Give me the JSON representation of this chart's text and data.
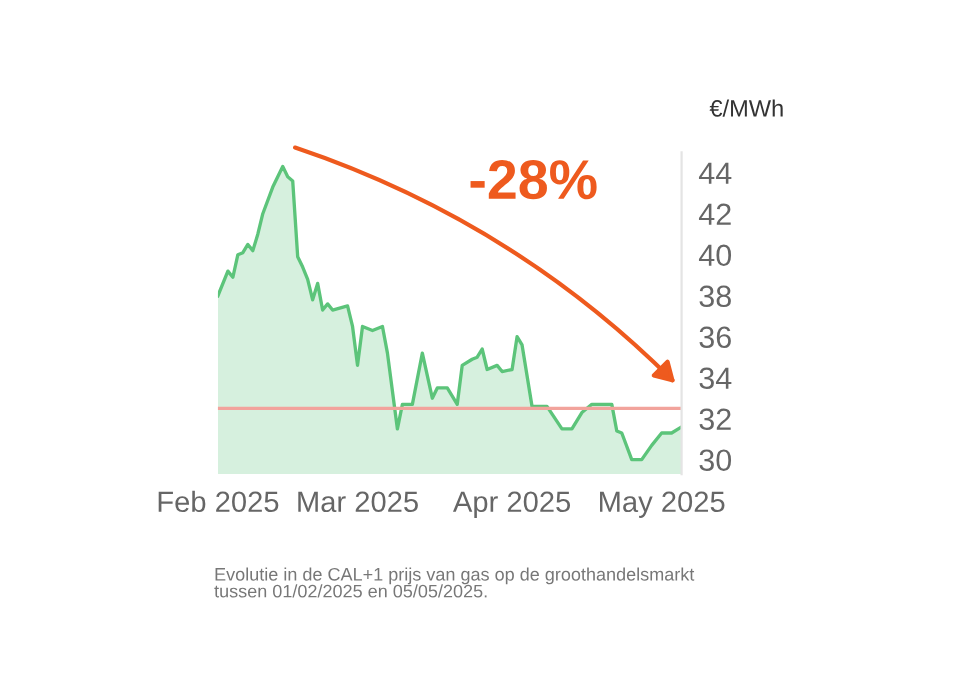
{
  "chart_data": {
    "type": "area",
    "x": [
      "2025-02-01",
      "2025-02-03",
      "2025-02-04",
      "2025-02-05",
      "2025-02-06",
      "2025-02-07",
      "2025-02-08",
      "2025-02-09",
      "2025-02-10",
      "2025-02-12",
      "2025-02-14",
      "2025-02-15",
      "2025-02-16",
      "2025-02-17",
      "2025-02-18",
      "2025-02-19",
      "2025-02-20",
      "2025-02-21",
      "2025-02-22",
      "2025-02-23",
      "2025-02-24",
      "2025-02-27",
      "2025-02-28",
      "2025-03-01",
      "2025-03-02",
      "2025-03-04",
      "2025-03-06",
      "2025-03-07",
      "2025-03-09",
      "2025-03-10",
      "2025-03-12",
      "2025-03-14",
      "2025-03-16",
      "2025-03-17",
      "2025-03-19",
      "2025-03-21",
      "2025-03-22",
      "2025-03-24",
      "2025-03-25",
      "2025-03-26",
      "2025-03-27",
      "2025-03-29",
      "2025-03-30",
      "2025-04-01",
      "2025-04-02",
      "2025-04-03",
      "2025-04-05",
      "2025-04-08",
      "2025-04-11",
      "2025-04-13",
      "2025-04-15",
      "2025-04-17",
      "2025-04-21",
      "2025-04-22",
      "2025-04-23",
      "2025-04-25",
      "2025-04-27",
      "2025-04-29",
      "2025-05-01",
      "2025-05-03",
      "2025-05-05"
    ],
    "series": [
      {
        "color": "#5cc47a",
        "values": [
          38.0,
          39.2,
          38.9,
          40.0,
          40.1,
          40.5,
          40.2,
          41.0,
          42.0,
          43.3,
          44.3,
          43.8,
          43.6,
          39.9,
          39.4,
          38.8,
          37.8,
          38.6,
          37.3,
          37.6,
          37.3,
          37.5,
          36.5,
          34.6,
          36.5,
          36.3,
          36.5,
          35.2,
          31.5,
          32.7,
          32.7,
          35.2,
          33.0,
          33.5,
          33.5,
          32.7,
          34.6,
          34.9,
          35.0,
          35.4,
          34.4,
          34.6,
          34.3,
          34.4,
          36.0,
          35.6,
          32.6,
          32.6,
          31.5,
          31.5,
          32.3,
          32.7,
          32.7,
          31.4,
          31.3,
          30.0,
          30.0,
          30.7,
          31.3,
          31.3,
          31.6
        ]
      }
    ],
    "ylabel": "€/MWh",
    "ylim": [
      29.3,
      45
    ],
    "yticks": [
      30,
      32,
      34,
      36,
      38,
      40,
      42,
      44
    ],
    "xlim": [
      "2025-02-01",
      "2025-05-05"
    ],
    "xticks": [
      {
        "value": "2025-02-01",
        "label": "Feb 2025"
      },
      {
        "value": "2025-03-01",
        "label": "Mar 2025"
      },
      {
        "value": "2025-04-01",
        "label": "Apr 2025"
      },
      {
        "value": "2025-05-01",
        "label": "May 2025"
      }
    ],
    "ref_lines": [
      {
        "axis": "y",
        "value": 32.5,
        "color": "#f2a39c"
      }
    ],
    "annotations": [
      "-28%",
      "Evolutie in de CAL+1 prijs van gas op de groothandelsmarkt\ntussen 01/02/2025 en 05/05/2025."
    ],
    "grid": false,
    "legend": false
  }
}
